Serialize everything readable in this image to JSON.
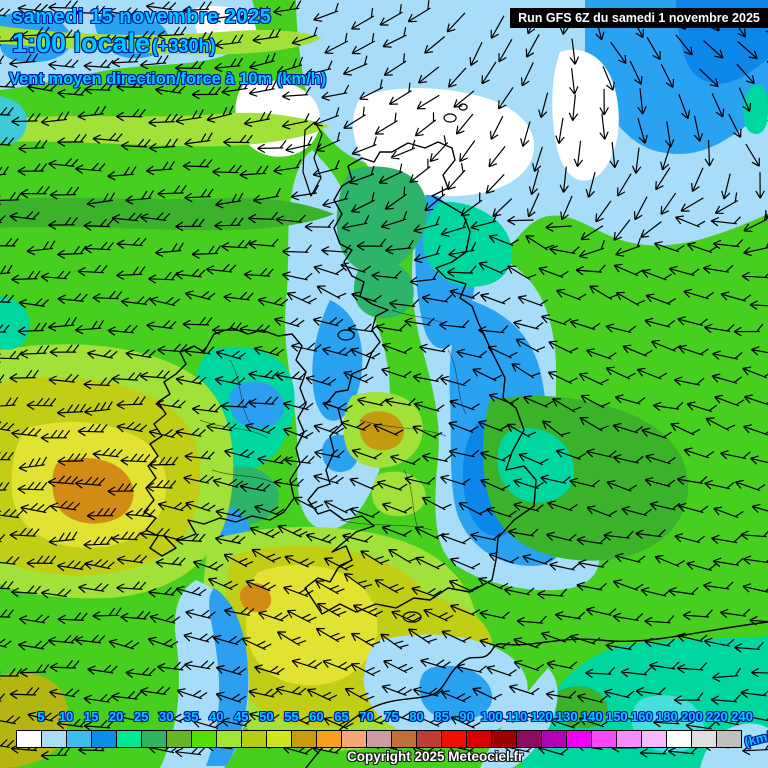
{
  "header": {
    "date_line": "samedi 15 novembre 2025",
    "time_line": "1:00 locale",
    "run_offset": "(+330h)",
    "subtitle": "Vent moyen direction/force à 10m (km/h)",
    "run_info": "Run GFS 6Z du samedi 1 novembre 2025"
  },
  "scale": {
    "unit": "km/h",
    "labels": [
      "5",
      "10",
      "15",
      "20",
      "25",
      "30",
      "35",
      "40",
      "45",
      "50",
      "55",
      "60",
      "65",
      "70",
      "75",
      "80",
      "85",
      "90",
      "100",
      "110",
      "120",
      "130",
      "140",
      "150",
      "160",
      "180",
      "200",
      "220",
      "240"
    ],
    "cell_colors": [
      "#ffffff",
      "#aadcf7",
      "#40bbf0",
      "#0a8fe8",
      "#00e895",
      "#2fb45f",
      "#64b628",
      "#52e000",
      "#a0e637",
      "#b8cc11",
      "#cce81c",
      "#c89c0e",
      "#f5a01e",
      "#f8a878",
      "#c89ca0",
      "#c26f3a",
      "#c23c34",
      "#f01000",
      "#d80000",
      "#9c0000",
      "#8c0a64",
      "#b400b4",
      "#f000f0",
      "#f846f8",
      "#f88cf8",
      "#f8baf8",
      "#ffffff",
      "#e0e0e0",
      "#c0c0c0"
    ]
  },
  "footer": {
    "copyright": "Copyright 2025 Meteociel.fr",
    "unit_label": "(km/h)"
  },
  "map": {
    "region_colors": {
      "calm_white": "#ffffff",
      "light_blue": "#a7ddf8",
      "blue": "#2aa2f2",
      "deep_blue": "#0d86ea",
      "teal": "#00d7a0",
      "sea_green": "#2eb36a",
      "green": "#47cf1f",
      "dark_green": "#3ab32a",
      "yellow_green": "#a2e03a",
      "olive": "#c2ce16",
      "yellow": "#e2e232",
      "mustard": "#c49a10",
      "orange": "#d28c15",
      "barb_color": "#000000"
    }
  }
}
